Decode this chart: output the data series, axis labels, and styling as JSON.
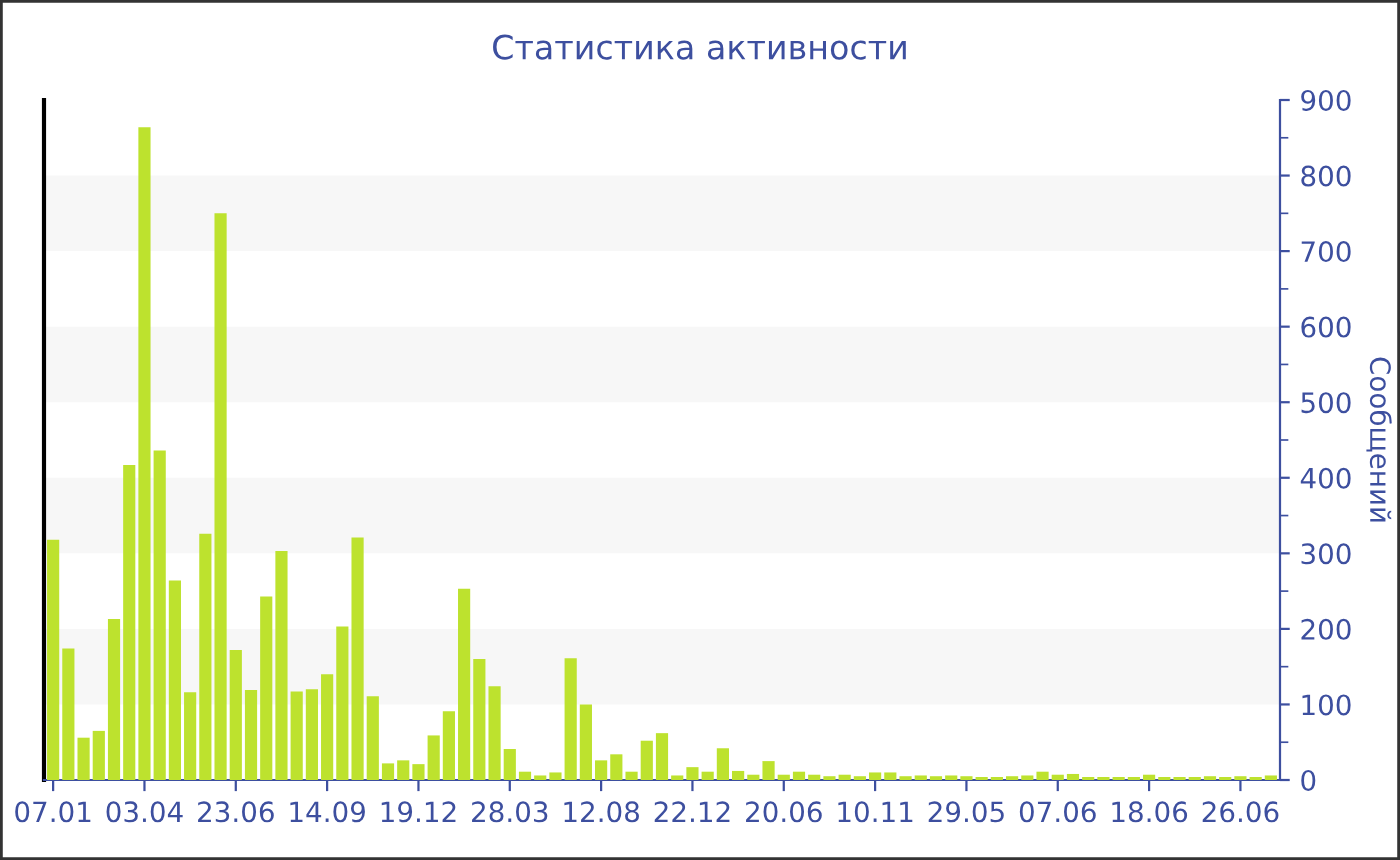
{
  "chart_data": {
    "type": "bar",
    "title": "Статистика активности",
    "ylabel": "Сообщений",
    "color": "#bde22e",
    "categories": [
      "07.01",
      null,
      null,
      null,
      null,
      null,
      "03.04",
      null,
      null,
      null,
      null,
      null,
      "23.06",
      null,
      null,
      null,
      null,
      null,
      "14.09",
      null,
      null,
      null,
      null,
      null,
      "19.12",
      null,
      null,
      null,
      null,
      null,
      "28.03",
      null,
      null,
      null,
      null,
      null,
      "12.08",
      null,
      null,
      null,
      null,
      null,
      "22.12",
      null,
      null,
      null,
      null,
      null,
      "20.06",
      null,
      null,
      null,
      null,
      null,
      "10.11",
      null,
      null,
      null,
      null,
      null,
      "29.05",
      null,
      null,
      null,
      null,
      null,
      "07.06",
      null,
      null,
      null,
      null,
      null,
      "18.06",
      null,
      null,
      null,
      null,
      null,
      "26.06",
      null,
      null
    ],
    "values": [
      318,
      174,
      56,
      65,
      213,
      417,
      864,
      436,
      264,
      116,
      326,
      750,
      172,
      119,
      243,
      303,
      117,
      120,
      140,
      203,
      321,
      111,
      22,
      26,
      21,
      59,
      91,
      253,
      160,
      124,
      41,
      11,
      6,
      10,
      161,
      100,
      26,
      34,
      11,
      52,
      62,
      6,
      17,
      11,
      42,
      12,
      7,
      25,
      7,
      11,
      7,
      5,
      7,
      5,
      10,
      10,
      5,
      6,
      5,
      6,
      5,
      4,
      4,
      5,
      6,
      11,
      7,
      8,
      4,
      4,
      4,
      4,
      7,
      4,
      4,
      4,
      5,
      4,
      5,
      4,
      6
    ],
    "ylim": [
      0,
      900
    ],
    "yticks": [
      0,
      100,
      200,
      300,
      400,
      500,
      600,
      700,
      800,
      900
    ],
    "grid": false,
    "bands": [
      {
        "axis": "y",
        "from": 100,
        "to": 200,
        "color": "#f7f7f7"
      },
      {
        "axis": "y",
        "from": 300,
        "to": 400,
        "color": "#f7f7f7"
      },
      {
        "axis": "y",
        "from": 500,
        "to": 600,
        "color": "#f7f7f7"
      },
      {
        "axis": "y",
        "from": 700,
        "to": 800,
        "color": "#f7f7f7"
      }
    ]
  }
}
